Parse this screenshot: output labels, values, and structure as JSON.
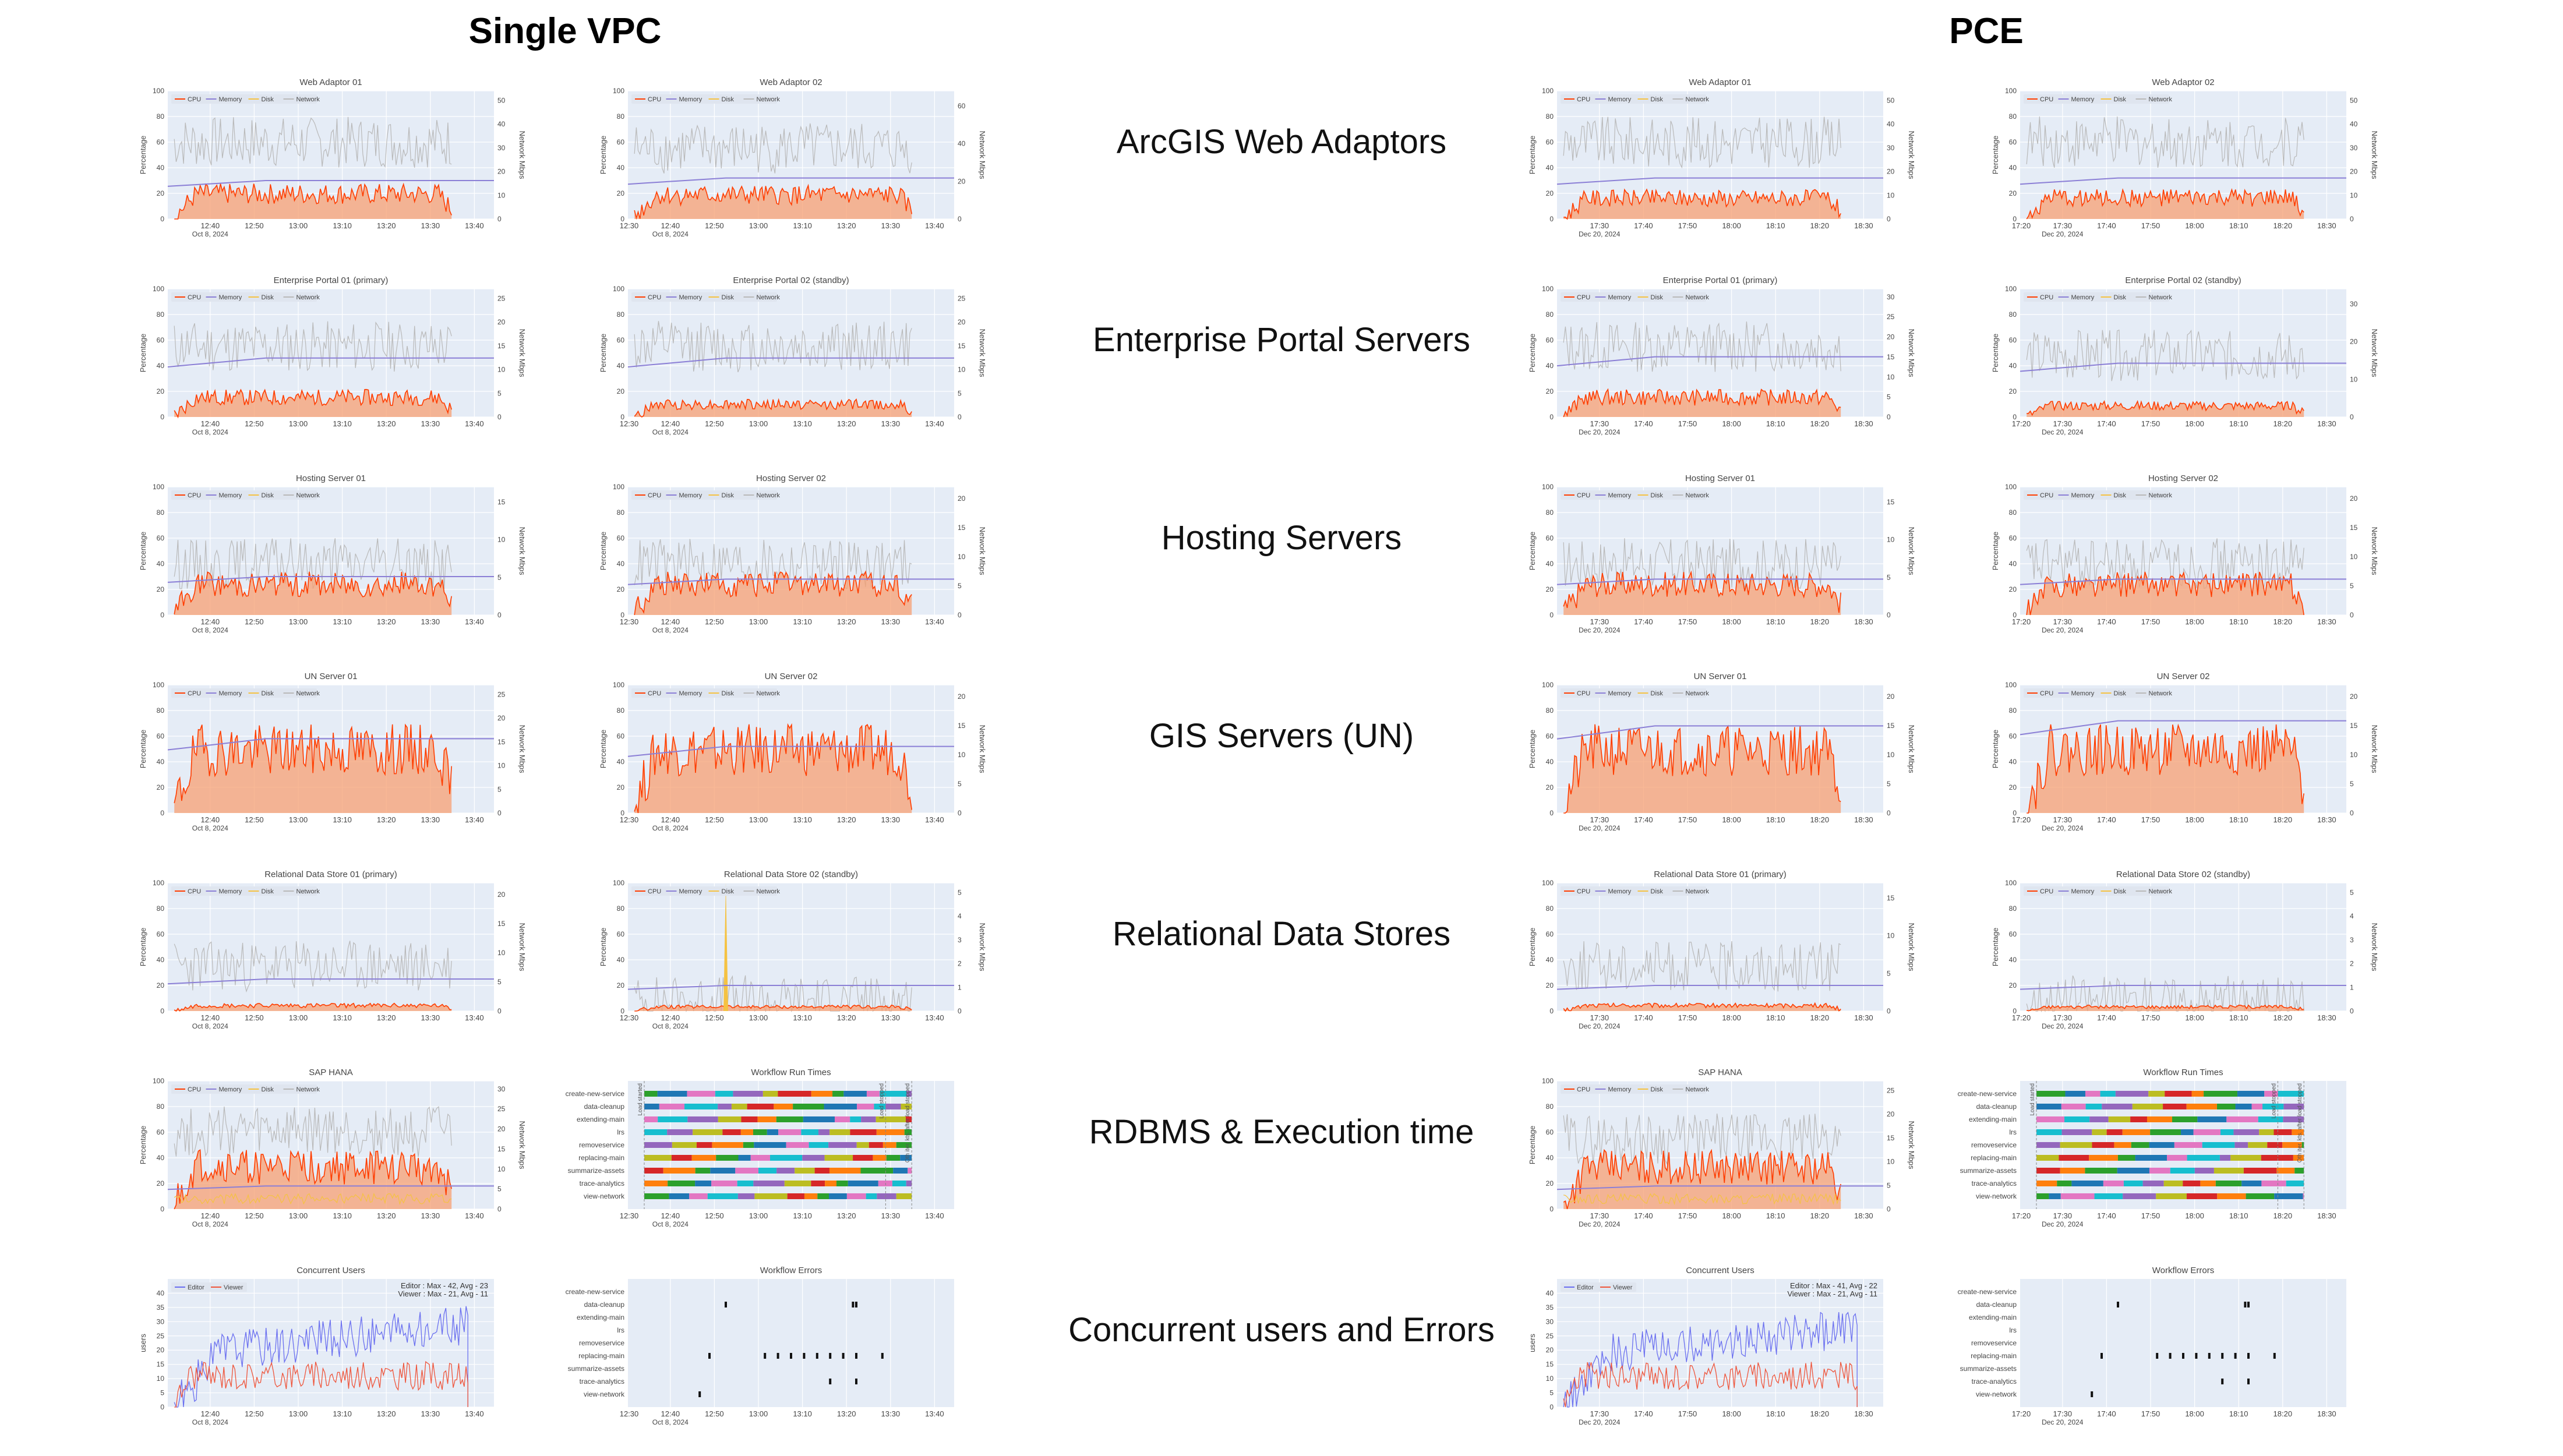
{
  "headers": {
    "left": "Single VPC",
    "right": "PCE"
  },
  "row_labels": [
    "ArcGIS Web Adaptors",
    "Enterprise Portal Servers",
    "Hosting Servers",
    "GIS Servers (UN)",
    "Relational Data Stores",
    "RDBMS & Execution time",
    "Concurrent users and Errors"
  ],
  "colors": {
    "cpu": "#ff3d00",
    "cpu_fill": "#f7a073",
    "memory": "#8b7fd6",
    "disk": "#f5c242",
    "network": "#b9b9b9",
    "editor": "#6a6ff0",
    "viewer": "#ef553b",
    "plot_bg": "#e5ecf6"
  },
  "legend": {
    "cpu": "CPU",
    "memory": "Memory",
    "disk": "Disk",
    "network": "Network",
    "editor": "Editor",
    "viewer": "Viewer"
  },
  "axes": {
    "percentage": "Percentage",
    "network": "Network Mbps",
    "users": "users"
  },
  "time_axis": {
    "vpc": {
      "ticks": [
        "12:40",
        "12:50",
        "13:00",
        "13:10",
        "13:20",
        "13:30",
        "13:40"
      ],
      "date": "Oct 8, 2024",
      "first_tick_alt": "12:30"
    },
    "pce": {
      "ticks": [
        "17:30",
        "17:40",
        "17:50",
        "18:00",
        "18:10",
        "18:20",
        "18:30"
      ],
      "date": "Dec 20, 2024",
      "first_tick_alt": "17:20"
    }
  },
  "pct_ticks": [
    "0",
    "20",
    "40",
    "60",
    "80",
    "100"
  ],
  "workflows": [
    "create-new-service",
    "data-cleanup",
    "extending-main",
    "lrs",
    "removeservice",
    "replacing-main",
    "summarize-assets",
    "trace-analytics",
    "view-network"
  ],
  "workflow_markers": [
    "Load started",
    "Load stopped",
    "Oth iter. kts. after load stopped"
  ],
  "chart_data": [
    {
      "type": "line",
      "title": "Web Adaptor 01",
      "x_ticks": "vpc",
      "alt_first": false,
      "network_ticks": [
        "0",
        "10",
        "20",
        "30",
        "40",
        "50"
      ],
      "series": [
        {
          "name": "CPU",
          "level": "18"
        },
        {
          "name": "Memory",
          "level": "30"
        },
        {
          "name": "Disk",
          "level": "0"
        },
        {
          "name": "Network",
          "level": "60"
        }
      ]
    },
    {
      "type": "line",
      "title": "Web Adaptor 02",
      "x_ticks": "vpc",
      "alt_first": true,
      "network_ticks": [
        "0",
        "20",
        "40",
        "60"
      ],
      "series": [
        {
          "name": "CPU",
          "level": "17"
        },
        {
          "name": "Memory",
          "level": "32"
        },
        {
          "name": "Disk",
          "level": "0"
        },
        {
          "name": "Network",
          "level": "55"
        }
      ]
    },
    {
      "type": "line",
      "title": "Web Adaptor 01",
      "x_ticks": "pce",
      "alt_first": false,
      "network_ticks": [
        "0",
        "10",
        "20",
        "30",
        "40",
        "50"
      ],
      "series": [
        {
          "name": "CPU",
          "level": "15"
        },
        {
          "name": "Memory",
          "level": "32"
        },
        {
          "name": "Disk",
          "level": "0"
        },
        {
          "name": "Network",
          "level": "60"
        }
      ]
    },
    {
      "type": "line",
      "title": "Web Adaptor 02",
      "x_ticks": "pce",
      "alt_first": true,
      "network_ticks": [
        "0",
        "10",
        "20",
        "30",
        "40",
        "50"
      ],
      "series": [
        {
          "name": "CPU",
          "level": "15"
        },
        {
          "name": "Memory",
          "level": "32"
        },
        {
          "name": "Disk",
          "level": "0"
        },
        {
          "name": "Network",
          "level": "60"
        }
      ]
    },
    {
      "type": "line",
      "title": "Enterprise Portal 01 (primary)",
      "x_ticks": "vpc",
      "alt_first": false,
      "network_ticks": [
        "0",
        "5",
        "10",
        "15",
        "20",
        "25"
      ],
      "series": [
        {
          "name": "CPU",
          "level": "14"
        },
        {
          "name": "Memory",
          "level": "46"
        },
        {
          "name": "Disk",
          "level": "0"
        },
        {
          "name": "Network",
          "level": "55"
        }
      ]
    },
    {
      "type": "line",
      "title": "Enterprise Portal 02 (standby)",
      "x_ticks": "vpc",
      "alt_first": true,
      "network_ticks": [
        "0",
        "5",
        "10",
        "15",
        "20",
        "25"
      ],
      "series": [
        {
          "name": "CPU",
          "level": "9"
        },
        {
          "name": "Memory",
          "level": "46"
        },
        {
          "name": "Disk",
          "level": "0"
        },
        {
          "name": "Network",
          "level": "55"
        }
      ]
    },
    {
      "type": "line",
      "title": "Enterprise Portal 01 (primary)",
      "x_ticks": "pce",
      "alt_first": false,
      "network_ticks": [
        "0",
        "5",
        "10",
        "15",
        "20",
        "25",
        "30"
      ],
      "series": [
        {
          "name": "CPU",
          "level": "14"
        },
        {
          "name": "Memory",
          "level": "47"
        },
        {
          "name": "Disk",
          "level": "0"
        },
        {
          "name": "Network",
          "level": "55"
        }
      ]
    },
    {
      "type": "line",
      "title": "Enterprise Portal 02 (standby)",
      "x_ticks": "pce",
      "alt_first": true,
      "network_ticks": [
        "0",
        "10",
        "20",
        "30"
      ],
      "series": [
        {
          "name": "CPU",
          "level": "8"
        },
        {
          "name": "Memory",
          "level": "42"
        },
        {
          "name": "Disk",
          "level": "0"
        },
        {
          "name": "Network",
          "level": "48"
        }
      ]
    },
    {
      "type": "line",
      "title": "Hosting Server 01",
      "x_ticks": "vpc",
      "alt_first": false,
      "network_ticks": [
        "0",
        "5",
        "10",
        "15"
      ],
      "series": [
        {
          "name": "CPU",
          "level": "22"
        },
        {
          "name": "Memory",
          "level": "30"
        },
        {
          "name": "Disk",
          "level": "0"
        },
        {
          "name": "Network",
          "level": "40"
        }
      ]
    },
    {
      "type": "line",
      "title": "Hosting Server 02",
      "x_ticks": "vpc",
      "alt_first": true,
      "network_ticks": [
        "0",
        "5",
        "10",
        "15",
        "20"
      ],
      "series": [
        {
          "name": "CPU",
          "level": "22"
        },
        {
          "name": "Memory",
          "level": "28"
        },
        {
          "name": "Disk",
          "level": "0"
        },
        {
          "name": "Network",
          "level": "40"
        }
      ]
    },
    {
      "type": "line",
      "title": "Hosting Server 01",
      "x_ticks": "pce",
      "alt_first": false,
      "network_ticks": [
        "0",
        "5",
        "10",
        "15"
      ],
      "series": [
        {
          "name": "CPU",
          "level": "22"
        },
        {
          "name": "Memory",
          "level": "28"
        },
        {
          "name": "Disk",
          "level": "0"
        },
        {
          "name": "Network",
          "level": "40"
        }
      ]
    },
    {
      "type": "line",
      "title": "Hosting Server 02",
      "x_ticks": "pce",
      "alt_first": true,
      "network_ticks": [
        "0",
        "5",
        "10",
        "15",
        "20"
      ],
      "series": [
        {
          "name": "CPU",
          "level": "22"
        },
        {
          "name": "Memory",
          "level": "28"
        },
        {
          "name": "Disk",
          "level": "0"
        },
        {
          "name": "Network",
          "level": "40"
        }
      ]
    },
    {
      "type": "line",
      "title": "UN Server 01",
      "x_ticks": "vpc",
      "alt_first": false,
      "network_ticks": [
        "0",
        "5",
        "10",
        "15",
        "20",
        "25"
      ],
      "series": [
        {
          "name": "CPU",
          "level": "45"
        },
        {
          "name": "Memory",
          "level": "58"
        },
        {
          "name": "Disk",
          "level": "0"
        },
        {
          "name": "Network",
          "level": "0"
        }
      ]
    },
    {
      "type": "line",
      "title": "UN Server 02",
      "x_ticks": "vpc",
      "alt_first": true,
      "network_ticks": [
        "0",
        "5",
        "10",
        "15",
        "20"
      ],
      "series": [
        {
          "name": "CPU",
          "level": "45"
        },
        {
          "name": "Memory",
          "level": "52"
        },
        {
          "name": "Disk",
          "level": "0"
        },
        {
          "name": "Network",
          "level": "0"
        }
      ]
    },
    {
      "type": "line",
      "title": "UN Server 01",
      "x_ticks": "pce",
      "alt_first": false,
      "network_ticks": [
        "0",
        "5",
        "10",
        "15",
        "20"
      ],
      "series": [
        {
          "name": "CPU",
          "level": "45"
        },
        {
          "name": "Memory",
          "level": "68"
        },
        {
          "name": "Disk",
          "level": "0"
        },
        {
          "name": "Network",
          "level": "0"
        }
      ]
    },
    {
      "type": "line",
      "title": "UN Server 02",
      "x_ticks": "pce",
      "alt_first": true,
      "network_ticks": [
        "0",
        "5",
        "10",
        "15",
        "20"
      ],
      "series": [
        {
          "name": "CPU",
          "level": "45"
        },
        {
          "name": "Memory",
          "level": "72"
        },
        {
          "name": "Disk",
          "level": "0"
        },
        {
          "name": "Network",
          "level": "0"
        }
      ]
    },
    {
      "type": "line",
      "title": "Relational Data Store 01 (primary)",
      "x_ticks": "vpc",
      "alt_first": false,
      "network_ticks": [
        "0",
        "5",
        "10",
        "15",
        "20"
      ],
      "series": [
        {
          "name": "CPU",
          "level": "4"
        },
        {
          "name": "Memory",
          "level": "25"
        },
        {
          "name": "Disk",
          "level": "0"
        },
        {
          "name": "Network",
          "level": "35"
        }
      ]
    },
    {
      "type": "line",
      "title": "Relational Data Store 02 (standby)",
      "x_ticks": "vpc",
      "alt_first": true,
      "network_ticks": [
        "0",
        "1",
        "2",
        "3",
        "4",
        "5"
      ],
      "series": [
        {
          "name": "CPU",
          "level": "3"
        },
        {
          "name": "Memory",
          "level": "20"
        },
        {
          "name": "Disk",
          "level": "100"
        },
        {
          "name": "Network",
          "level": "8"
        }
      ]
    },
    {
      "type": "line",
      "title": "Relational Data Store 01 (primary)",
      "x_ticks": "pce",
      "alt_first": false,
      "network_ticks": [
        "0",
        "5",
        "10",
        "15"
      ],
      "series": [
        {
          "name": "CPU",
          "level": "4"
        },
        {
          "name": "Memory",
          "level": "20"
        },
        {
          "name": "Disk",
          "level": "0"
        },
        {
          "name": "Network",
          "level": "35"
        }
      ]
    },
    {
      "type": "line",
      "title": "Relational Data Store 02 (standby)",
      "x_ticks": "pce",
      "alt_first": true,
      "network_ticks": [
        "0",
        "1",
        "2",
        "3",
        "4",
        "5"
      ],
      "series": [
        {
          "name": "CPU",
          "level": "3"
        },
        {
          "name": "Memory",
          "level": "20"
        },
        {
          "name": "Disk",
          "level": "0"
        },
        {
          "name": "Network",
          "level": "8"
        }
      ]
    },
    {
      "type": "line",
      "title": "SAP HANA",
      "x_ticks": "vpc",
      "alt_first": false,
      "network_ticks": [
        "0",
        "5",
        "10",
        "15",
        "20",
        "25",
        "30"
      ],
      "series": [
        {
          "name": "CPU",
          "level": "30"
        },
        {
          "name": "Memory",
          "level": "18"
        },
        {
          "name": "Disk",
          "level": "8"
        },
        {
          "name": "Network",
          "level": "60"
        }
      ]
    },
    {
      "type": "gantt",
      "title": "Workflow Run Times",
      "x_ticks": "vpc",
      "alt_first": true
    },
    {
      "type": "line",
      "title": "SAP HANA",
      "x_ticks": "pce",
      "alt_first": false,
      "network_ticks": [
        "0",
        "5",
        "10",
        "15",
        "20",
        "25"
      ],
      "series": [
        {
          "name": "CPU",
          "level": "30"
        },
        {
          "name": "Memory",
          "level": "18"
        },
        {
          "name": "Disk",
          "level": "8"
        },
        {
          "name": "Network",
          "level": "55"
        }
      ]
    },
    {
      "type": "gantt",
      "title": "Workflow Run Times",
      "x_ticks": "pce",
      "alt_first": true
    },
    {
      "type": "users",
      "title": "Concurrent Users",
      "x_ticks": "vpc",
      "alt_first": false,
      "annotation": [
        "Editor : Max - 42, Avg - 23",
        "Viewer : Max - 21, Avg - 11"
      ],
      "y_ticks": [
        "0",
        "5",
        "10",
        "15",
        "20",
        "25",
        "30",
        "35",
        "40"
      ],
      "editor_avg": 23,
      "viewer_avg": 11
    },
    {
      "type": "errors",
      "title": "Workflow Errors",
      "x_ticks": "vpc",
      "alt_first": true
    },
    {
      "type": "users",
      "title": "Concurrent Users",
      "x_ticks": "pce",
      "alt_first": false,
      "annotation": [
        "Editor : Max - 41, Avg - 22",
        "Viewer : Max - 21, Avg - 11"
      ],
      "y_ticks": [
        "0",
        "5",
        "10",
        "15",
        "20",
        "25",
        "30",
        "35",
        "40"
      ],
      "editor_avg": 22,
      "viewer_avg": 11
    },
    {
      "type": "errors",
      "title": "Workflow Errors",
      "x_ticks": "pce",
      "alt_first": true
    }
  ]
}
